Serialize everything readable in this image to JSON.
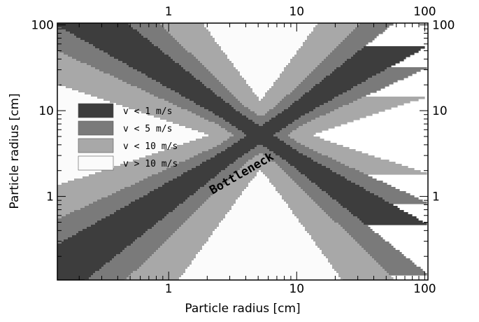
{
  "chart_data": {
    "type": "heatmap",
    "xlabel": "Particle radius [cm]",
    "ylabel": "Particle radius [cm]",
    "x_scale": "log",
    "y_scale": "log",
    "xlim": [
      0.135,
      106
    ],
    "ylim": [
      0.106,
      105
    ],
    "x_ticks": [
      {
        "value": 1,
        "label": "1"
      },
      {
        "value": 10,
        "label": "10"
      },
      {
        "value": 100,
        "label": "100"
      }
    ],
    "y_ticks": [
      {
        "value": 1,
        "label": "1"
      },
      {
        "value": 10,
        "label": "10"
      },
      {
        "value": 100,
        "label": "100"
      }
    ],
    "top_axis_mirrors_bottom": true,
    "right_axis_mirrors_left": true,
    "legend": {
      "placement": "left",
      "entries": [
        {
          "label": "v < 1 m/s",
          "color": "#3d3d3d"
        },
        {
          "label": "v < 5 m/s",
          "color": "#7a7a7a"
        },
        {
          "label": "v < 10 m/s",
          "color": "#a8a8a8"
        },
        {
          "label": "v > 10 m/s",
          "color": "#fbfbfb"
        }
      ]
    },
    "annotation": {
      "text": "Bottleneck",
      "x": 2.2,
      "y": 1.05,
      "rotation_deg": -30
    },
    "model": {
      "description_of_contours": "X-shaped velocity minimum centered near radius ~5 cm",
      "center_radius": 5.2,
      "velocity_thresholds_m_s": [
        1,
        5,
        10
      ]
    }
  }
}
